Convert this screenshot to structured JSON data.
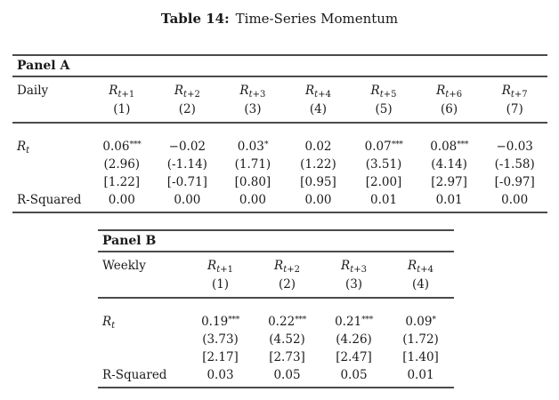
{
  "page": {
    "background_color": "#ffffff",
    "text_color": "#1a1a1a",
    "rule_color": "#4b4b4b"
  },
  "title": {
    "label": "Table 14:",
    "text": "Time-Series Momentum"
  },
  "panels": [
    {
      "name": "Panel A",
      "frequency_label": "Daily",
      "columns": [
        {
          "var": "R",
          "sub": "t+1",
          "number": "(1)"
        },
        {
          "var": "R",
          "sub": "t+2",
          "number": "(2)"
        },
        {
          "var": "R",
          "sub": "t+3",
          "number": "(3)"
        },
        {
          "var": "R",
          "sub": "t+4",
          "number": "(4)"
        },
        {
          "var": "R",
          "sub": "t+5",
          "number": "(5)"
        },
        {
          "var": "R",
          "sub": "t+6",
          "number": "(6)"
        },
        {
          "var": "R",
          "sub": "t+7",
          "number": "(7)"
        }
      ],
      "predictor": {
        "var": "R",
        "sub": "t"
      },
      "rows": {
        "coefficients": [
          {
            "value": "0.06",
            "stars": "***"
          },
          {
            "value": "−0.02",
            "stars": ""
          },
          {
            "value": "0.03",
            "stars": "*"
          },
          {
            "value": "0.02",
            "stars": ""
          },
          {
            "value": "0.07",
            "stars": "***"
          },
          {
            "value": "0.08",
            "stars": "***"
          },
          {
            "value": "−0.03",
            "stars": ""
          }
        ],
        "t_stats": [
          "(2.96)",
          "(-1.14)",
          "(1.71)",
          "(1.22)",
          "(3.51)",
          "(4.14)",
          "(-1.58)"
        ],
        "bracket_stats": [
          "[1.22]",
          "[-0.71]",
          "[0.80]",
          "[0.95]",
          "[2.00]",
          "[2.97]",
          "[-0.97]"
        ],
        "r_squared_label": "R-Squared",
        "r_squared": [
          "0.00",
          "0.00",
          "0.00",
          "0.00",
          "0.01",
          "0.01",
          "0.00"
        ]
      }
    },
    {
      "name": "Panel B",
      "frequency_label": "Weekly",
      "columns": [
        {
          "var": "R",
          "sub": "t+1",
          "number": "(1)"
        },
        {
          "var": "R",
          "sub": "t+2",
          "number": "(2)"
        },
        {
          "var": "R",
          "sub": "t+3",
          "number": "(3)"
        },
        {
          "var": "R",
          "sub": "t+4",
          "number": "(4)"
        }
      ],
      "predictor": {
        "var": "R",
        "sub": "t"
      },
      "rows": {
        "coefficients": [
          {
            "value": "0.19",
            "stars": "***"
          },
          {
            "value": "0.22",
            "stars": "***"
          },
          {
            "value": "0.21",
            "stars": "***"
          },
          {
            "value": "0.09",
            "stars": "*"
          }
        ],
        "t_stats": [
          "(3.73)",
          "(4.52)",
          "(4.26)",
          "(1.72)"
        ],
        "bracket_stats": [
          "[2.17]",
          "[2.73]",
          "[2.47]",
          "[1.40]"
        ],
        "r_squared_label": "R-Squared",
        "r_squared": [
          "0.03",
          "0.05",
          "0.05",
          "0.01"
        ]
      }
    }
  ]
}
